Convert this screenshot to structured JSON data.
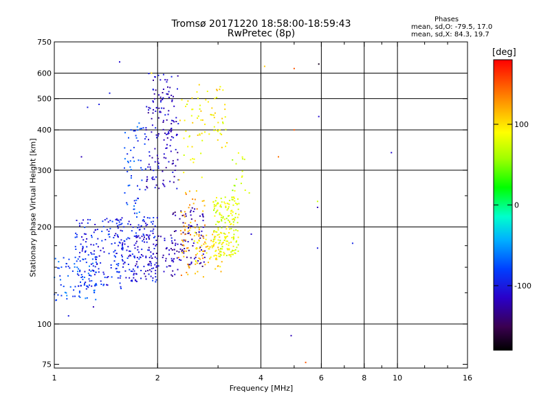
{
  "header": {
    "title_line1": "Tromsø 20171220 18:58:00-18:59:43",
    "title_line2": "RwPretec (8p)"
  },
  "stats": {
    "heading": "Phases",
    "line_o": "mean, sd,O: -79.5, 17.0",
    "line_x": "mean, sd,X:  84.3, 19.7"
  },
  "colorbar": {
    "unit": "[deg]",
    "ticks": [
      {
        "value": 100,
        "label": "100"
      },
      {
        "value": 0,
        "label": "0"
      },
      {
        "value": -100,
        "label": "-100"
      }
    ],
    "range": [
      -180,
      180
    ]
  },
  "chart_data": {
    "type": "scatter",
    "xlabel": "Frequency [MHz]",
    "ylabel": "Stationary phase Virtual Height [km]",
    "xscale": "log",
    "yscale": "log",
    "xlim": [
      1,
      16
    ],
    "ylim": [
      73,
      750
    ],
    "xticks": [
      {
        "value": 1,
        "label": "1"
      },
      {
        "value": 2,
        "label": "2"
      },
      {
        "value": 4,
        "label": "4"
      },
      {
        "value": 6,
        "label": "6"
      },
      {
        "value": 8,
        "label": "8"
      },
      {
        "value": 10,
        "label": "10"
      },
      {
        "value": 16,
        "label": "16"
      }
    ],
    "xminor": [
      3,
      5,
      7,
      9,
      12,
      14
    ],
    "yticks": [
      {
        "value": 75,
        "label": "75"
      },
      {
        "value": 100,
        "label": "100"
      },
      {
        "value": 200,
        "label": "200"
      },
      {
        "value": 300,
        "label": "300"
      },
      {
        "value": 400,
        "label": "400"
      },
      {
        "value": 500,
        "label": "500"
      },
      {
        "value": 600,
        "label": "600"
      },
      {
        "value": 750,
        "label": "750"
      }
    ],
    "yminor": [
      125,
      150,
      175,
      250
    ],
    "grid_x": [
      2,
      4,
      6,
      8,
      10
    ],
    "grid_y": [
      100,
      200,
      300,
      400,
      500,
      600
    ],
    "color_by": "phase [deg]",
    "clusters": [
      {
        "fmin": 1.0,
        "fmax": 1.35,
        "hmin": 118,
        "hmax": 165,
        "phase": -75,
        "count": 80
      },
      {
        "fmin": 1.15,
        "fmax": 1.6,
        "hmin": 128,
        "hmax": 215,
        "phase": -95,
        "count": 160
      },
      {
        "fmin": 1.5,
        "fmax": 2.0,
        "hmin": 135,
        "hmax": 215,
        "phase": -100,
        "count": 150
      },
      {
        "fmin": 1.7,
        "fmax": 2.3,
        "hmin": 140,
        "hmax": 190,
        "phase": -115,
        "count": 80
      },
      {
        "fmin": 1.6,
        "fmax": 1.85,
        "hmin": 210,
        "hmax": 420,
        "phase": -80,
        "count": 60
      },
      {
        "fmin": 1.85,
        "fmax": 2.3,
        "hmin": 260,
        "hmax": 600,
        "phase": -115,
        "count": 160
      },
      {
        "fmin": 2.2,
        "fmax": 2.75,
        "hmin": 150,
        "hmax": 230,
        "phase": -125,
        "count": 90
      },
      {
        "fmin": 2.3,
        "fmax": 2.75,
        "hmin": 140,
        "hmax": 260,
        "phase": 125,
        "count": 70
      },
      {
        "fmin": 2.55,
        "fmax": 3.1,
        "hmin": 145,
        "hmax": 200,
        "phase": 100,
        "count": 70
      },
      {
        "fmin": 2.9,
        "fmax": 3.45,
        "hmin": 160,
        "hmax": 250,
        "phase": 80,
        "count": 170
      },
      {
        "fmin": 2.6,
        "fmax": 3.2,
        "hmin": 350,
        "hmax": 560,
        "phase": 95,
        "count": 50
      },
      {
        "fmin": 2.3,
        "fmax": 2.7,
        "hmin": 280,
        "hmax": 520,
        "phase": 90,
        "count": 30
      },
      {
        "fmin": 3.3,
        "fmax": 3.6,
        "hmin": 250,
        "hmax": 340,
        "phase": 70,
        "count": 15
      }
    ],
    "points": [
      {
        "f": 1.55,
        "h": 650,
        "phase": -110
      },
      {
        "f": 1.92,
        "h": 600,
        "phase": 100
      },
      {
        "f": 4.1,
        "h": 630,
        "phase": 110
      },
      {
        "f": 5.0,
        "h": 620,
        "phase": 150
      },
      {
        "f": 5.9,
        "h": 640,
        "phase": -170
      },
      {
        "f": 5.9,
        "h": 440,
        "phase": -110
      },
      {
        "f": 5.0,
        "h": 400,
        "phase": 150
      },
      {
        "f": 4.5,
        "h": 330,
        "phase": 140
      },
      {
        "f": 9.6,
        "h": 340,
        "phase": -110
      },
      {
        "f": 5.85,
        "h": 240,
        "phase": 70
      },
      {
        "f": 5.85,
        "h": 230,
        "phase": -120
      },
      {
        "f": 7.4,
        "h": 178,
        "phase": -95
      },
      {
        "f": 5.85,
        "h": 172,
        "phase": -100
      },
      {
        "f": 3.75,
        "h": 190,
        "phase": -110
      },
      {
        "f": 1.1,
        "h": 106,
        "phase": -100
      },
      {
        "f": 1.3,
        "h": 113,
        "phase": -120
      },
      {
        "f": 4.9,
        "h": 92,
        "phase": -120
      },
      {
        "f": 5.4,
        "h": 76,
        "phase": 150
      },
      {
        "f": 1.35,
        "h": 480,
        "phase": -100
      },
      {
        "f": 1.25,
        "h": 470,
        "phase": -100
      },
      {
        "f": 1.45,
        "h": 520,
        "phase": -100
      },
      {
        "f": 1.2,
        "h": 330,
        "phase": -120
      },
      {
        "f": 3.6,
        "h": 260,
        "phase": 80
      },
      {
        "f": 3.7,
        "h": 255,
        "phase": 75
      }
    ]
  }
}
